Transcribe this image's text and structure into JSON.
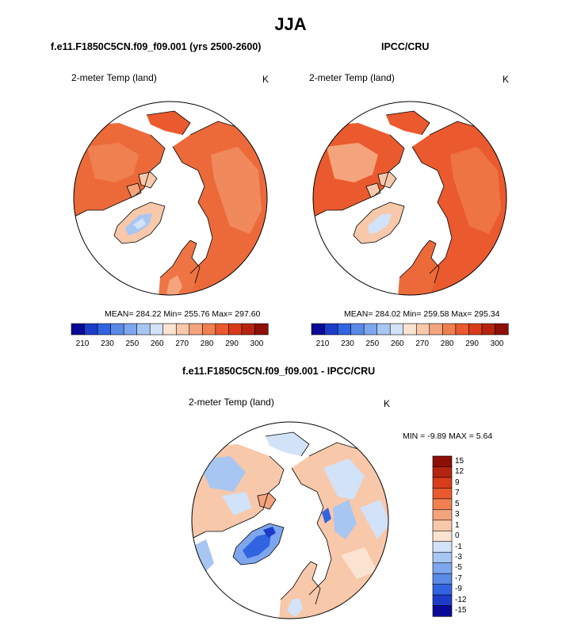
{
  "title": "JJA",
  "panels": [
    {
      "id": "model",
      "subtitle": "f.e11.F1850C5CN.f09_f09.001 (yrs 2500-2600)",
      "variable": "2-meter Temp (land)",
      "units": "K",
      "stats": "MEAN= 284.22  Min= 255.76  Max= 297.60"
    },
    {
      "id": "obs",
      "subtitle": "IPCC/CRU",
      "variable": "2-meter Temp (land)",
      "units": "K",
      "stats": "MEAN= 284.02  Min= 259.58  Max= 295.34"
    },
    {
      "id": "diff",
      "subtitle": "f.e11.F1850C5CN.f09_f09.001 - IPCC/CRU",
      "variable": "2-meter Temp (land)",
      "units": "K",
      "stats": "MIN =  -9.89 MAX =   5.64"
    }
  ],
  "temp_colorbar": {
    "colors": [
      "#0a0a96",
      "#1c3cc8",
      "#3064e0",
      "#5a8ae8",
      "#7ea6ee",
      "#a8c6f2",
      "#d2e2f8",
      "#fbe3d2",
      "#f8c8aa",
      "#f4a47c",
      "#f08050",
      "#ea5a2e",
      "#d83c1a",
      "#b42410",
      "#8c1008"
    ],
    "labels": [
      "210",
      "230",
      "250",
      "260",
      "270",
      "280",
      "290",
      "300"
    ]
  },
  "diff_colorbar": {
    "colors": [
      "#8c1008",
      "#b42410",
      "#d83c1a",
      "#ea5a2e",
      "#f08050",
      "#f4a47c",
      "#f8c8aa",
      "#fbe3d2",
      "#d2e2f8",
      "#a8c6f2",
      "#7ea6ee",
      "#5a8ae8",
      "#3064e0",
      "#1c3cc8",
      "#0a0a96"
    ],
    "labels": [
      "15",
      "12",
      "9",
      "7",
      "5",
      "3",
      "1",
      "0",
      "-1",
      "-3",
      "-5",
      "-7",
      "-9",
      "-12",
      "-15"
    ]
  }
}
